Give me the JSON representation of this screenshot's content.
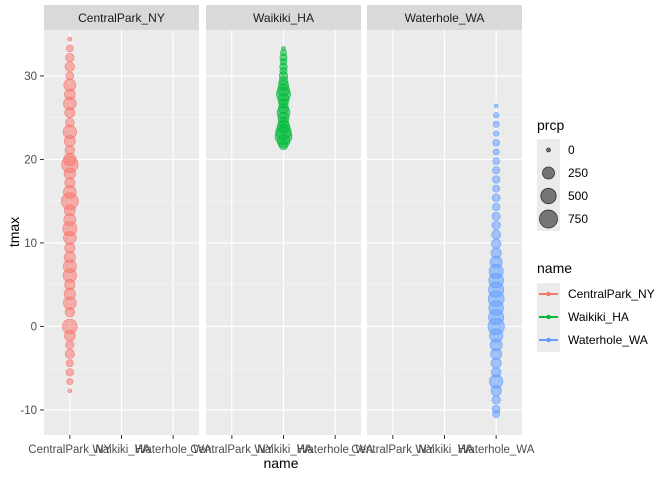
{
  "chart_data": {
    "type": "scatter",
    "facet_by": "name",
    "facets": [
      "CentralPark_NY",
      "Waikiki_HA",
      "Waterhole_WA"
    ],
    "x_categories": [
      "CentralPark_NY",
      "Waikiki_HA",
      "Waterhole_WA"
    ],
    "xlabel": "name",
    "ylabel": "tmax",
    "ylim": [
      -13,
      35.5
    ],
    "yticks": [
      -10,
      0,
      10,
      20,
      30
    ],
    "grid": true,
    "legend_position": "right",
    "size_legend": {
      "title": "prcp",
      "breaks": [
        0,
        250,
        500,
        750
      ]
    },
    "color_legend": {
      "title": "name",
      "entries": [
        "CentralPark_NY",
        "Waikiki_HA",
        "Waterhole_WA"
      ],
      "colors": [
        "#F8766D",
        "#00BA38",
        "#619CFF"
      ]
    },
    "series": [
      {
        "name": "CentralPark_NY",
        "color": "#F8766D",
        "x": "CentralPark_NY",
        "tmax_range": [
          -7.7,
          34.4
        ],
        "points": [
          {
            "y": 34.4,
            "prcp": 0
          },
          {
            "y": 33.3,
            "prcp": 30
          },
          {
            "y": 32.2,
            "prcp": 80
          },
          {
            "y": 31.1,
            "prcp": 120
          },
          {
            "y": 30.0,
            "prcp": 60
          },
          {
            "y": 28.9,
            "prcp": 250
          },
          {
            "y": 27.8,
            "prcp": 180
          },
          {
            "y": 26.7,
            "prcp": 300
          },
          {
            "y": 25.6,
            "prcp": 150
          },
          {
            "y": 24.4,
            "prcp": 90
          },
          {
            "y": 23.3,
            "prcp": 350
          },
          {
            "y": 22.2,
            "prcp": 200
          },
          {
            "y": 21.1,
            "prcp": 120
          },
          {
            "y": 20.0,
            "prcp": 280
          },
          {
            "y": 19.4,
            "prcp": 600
          },
          {
            "y": 18.3,
            "prcp": 220
          },
          {
            "y": 17.2,
            "prcp": 150
          },
          {
            "y": 16.1,
            "prcp": 300
          },
          {
            "y": 15.0,
            "prcp": 650
          },
          {
            "y": 13.9,
            "prcp": 200
          },
          {
            "y": 12.8,
            "prcp": 250
          },
          {
            "y": 11.7,
            "prcp": 400
          },
          {
            "y": 10.6,
            "prcp": 300
          },
          {
            "y": 9.4,
            "prcp": 150
          },
          {
            "y": 8.3,
            "prcp": 200
          },
          {
            "y": 7.2,
            "prcp": 320
          },
          {
            "y": 6.1,
            "prcp": 350
          },
          {
            "y": 5.0,
            "prcp": 160
          },
          {
            "y": 3.9,
            "prcp": 220
          },
          {
            "y": 2.8,
            "prcp": 300
          },
          {
            "y": 1.7,
            "prcp": 120
          },
          {
            "y": 0.0,
            "prcp": 450
          },
          {
            "y": -1.1,
            "prcp": 180
          },
          {
            "y": -2.2,
            "prcp": 80
          },
          {
            "y": -3.3,
            "prcp": 110
          },
          {
            "y": -4.4,
            "prcp": 40
          },
          {
            "y": -5.5,
            "prcp": 50
          },
          {
            "y": -6.6,
            "prcp": 20
          },
          {
            "y": -7.7,
            "prcp": 0
          }
        ]
      },
      {
        "name": "Waikiki_HA",
        "color": "#00BA38",
        "x": "Waikiki_HA",
        "tmax_range": [
          21.7,
          33.3
        ],
        "points": [
          {
            "y": 33.3,
            "prcp": 0
          },
          {
            "y": 32.8,
            "prcp": 20
          },
          {
            "y": 32.2,
            "prcp": 40
          },
          {
            "y": 31.7,
            "prcp": 30
          },
          {
            "y": 31.1,
            "prcp": 50
          },
          {
            "y": 30.6,
            "prcp": 40
          },
          {
            "y": 30.0,
            "prcp": 80
          },
          {
            "y": 29.4,
            "prcp": 100
          },
          {
            "y": 28.9,
            "prcp": 150
          },
          {
            "y": 28.3,
            "prcp": 250
          },
          {
            "y": 27.8,
            "prcp": 400
          },
          {
            "y": 27.2,
            "prcp": 200
          },
          {
            "y": 26.7,
            "prcp": 120
          },
          {
            "y": 26.1,
            "prcp": 150
          },
          {
            "y": 25.6,
            "prcp": 300
          },
          {
            "y": 25.0,
            "prcp": 200
          },
          {
            "y": 24.4,
            "prcp": 150
          },
          {
            "y": 23.9,
            "prcp": 300
          },
          {
            "y": 23.3,
            "prcp": 500
          },
          {
            "y": 22.8,
            "prcp": 650
          },
          {
            "y": 22.2,
            "prcp": 300
          },
          {
            "y": 21.7,
            "prcp": 100
          }
        ]
      },
      {
        "name": "Waterhole_WA",
        "color": "#619CFF",
        "x": "Waterhole_WA",
        "tmax_range": [
          -10.5,
          26.4
        ],
        "points": [
          {
            "y": 26.4,
            "prcp": 0
          },
          {
            "y": 25.3,
            "prcp": 10
          },
          {
            "y": 24.2,
            "prcp": 20
          },
          {
            "y": 23.1,
            "prcp": 10
          },
          {
            "y": 22.0,
            "prcp": 30
          },
          {
            "y": 20.9,
            "prcp": 20
          },
          {
            "y": 19.8,
            "prcp": 30
          },
          {
            "y": 18.7,
            "prcp": 40
          },
          {
            "y": 17.6,
            "prcp": 50
          },
          {
            "y": 16.5,
            "prcp": 40
          },
          {
            "y": 15.4,
            "prcp": 60
          },
          {
            "y": 14.3,
            "prcp": 50
          },
          {
            "y": 13.2,
            "prcp": 70
          },
          {
            "y": 12.1,
            "prcp": 80
          },
          {
            "y": 11.0,
            "prcp": 100
          },
          {
            "y": 9.9,
            "prcp": 120
          },
          {
            "y": 8.8,
            "prcp": 150
          },
          {
            "y": 7.7,
            "prcp": 250
          },
          {
            "y": 6.6,
            "prcp": 400
          },
          {
            "y": 5.5,
            "prcp": 450
          },
          {
            "y": 4.4,
            "prcp": 500
          },
          {
            "y": 3.3,
            "prcp": 550
          },
          {
            "y": 2.2,
            "prcp": 450
          },
          {
            "y": 1.1,
            "prcp": 500
          },
          {
            "y": 0.0,
            "prcp": 600
          },
          {
            "y": -1.1,
            "prcp": 350
          },
          {
            "y": -2.2,
            "prcp": 250
          },
          {
            "y": -3.3,
            "prcp": 200
          },
          {
            "y": -4.4,
            "prcp": 150
          },
          {
            "y": -5.5,
            "prcp": 120
          },
          {
            "y": -6.6,
            "prcp": 350
          },
          {
            "y": -7.7,
            "prcp": 150
          },
          {
            "y": -8.8,
            "prcp": 80
          },
          {
            "y": -9.9,
            "prcp": 60
          },
          {
            "y": -10.5,
            "prcp": 40
          }
        ]
      }
    ]
  }
}
